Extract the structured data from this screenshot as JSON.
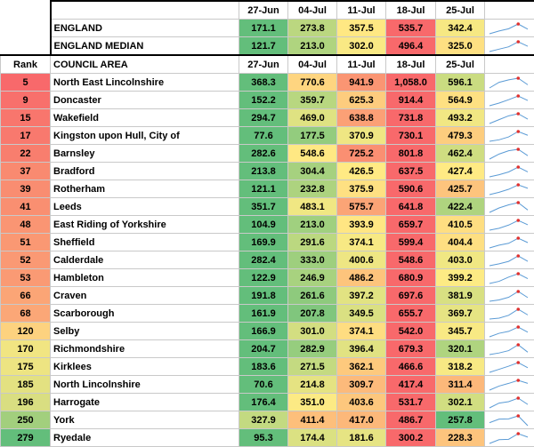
{
  "columns": {
    "rank": "Rank",
    "council_area": "COUNCIL AREA",
    "weeks": [
      "27-Jun",
      "04-Jul",
      "11-Jul",
      "18-Jul",
      "25-Jul"
    ]
  },
  "summary": [
    {
      "name": "ENGLAND",
      "values": [
        "171.1",
        "273.8",
        "357.5",
        "535.7",
        "342.4"
      ],
      "nums": [
        171.1,
        273.8,
        357.5,
        535.7,
        342.4
      ]
    },
    {
      "name": "ENGLAND MEDIAN",
      "values": [
        "121.7",
        "213.0",
        "302.0",
        "496.4",
        "325.0"
      ],
      "nums": [
        121.7,
        213.0,
        302.0,
        496.4,
        325.0
      ]
    }
  ],
  "rows": [
    {
      "rank": "5",
      "name": "North East Lincolnshire",
      "values": [
        "368.3",
        "770.6",
        "941.9",
        "1,058.0",
        "596.1"
      ],
      "nums": [
        368.3,
        770.6,
        941.9,
        1058.0,
        596.1
      ],
      "rank_color": "#f8696b"
    },
    {
      "rank": "9",
      "name": "Doncaster",
      "values": [
        "152.2",
        "359.7",
        "625.3",
        "914.4",
        "564.9"
      ],
      "nums": [
        152.2,
        359.7,
        625.3,
        914.4,
        564.9
      ],
      "rank_color": "#f8706c"
    },
    {
      "rank": "15",
      "name": "Wakefield",
      "values": [
        "294.7",
        "469.0",
        "638.8",
        "731.8",
        "493.2"
      ],
      "nums": [
        294.7,
        469.0,
        638.8,
        731.8,
        493.2
      ],
      "rank_color": "#f8766d"
    },
    {
      "rank": "17",
      "name": "Kingston upon Hull, City of",
      "values": [
        "77.6",
        "177.5",
        "370.9",
        "730.1",
        "479.3"
      ],
      "nums": [
        77.6,
        177.5,
        370.9,
        730.1,
        479.3
      ],
      "rank_color": "#f8796e"
    },
    {
      "rank": "22",
      "name": "Barnsley",
      "values": [
        "282.6",
        "548.6",
        "725.2",
        "801.8",
        "462.4"
      ],
      "nums": [
        282.6,
        548.6,
        725.2,
        801.8,
        462.4
      ],
      "rank_color": "#f87e6e"
    },
    {
      "rank": "37",
      "name": "Bradford",
      "values": [
        "213.8",
        "304.4",
        "426.5",
        "637.5",
        "427.4"
      ],
      "nums": [
        213.8,
        304.4,
        426.5,
        637.5,
        427.4
      ],
      "rank_color": "#f98a70"
    },
    {
      "rank": "39",
      "name": "Rotherham",
      "values": [
        "121.1",
        "232.8",
        "375.9",
        "590.6",
        "425.7"
      ],
      "nums": [
        121.1,
        232.8,
        375.9,
        590.6,
        425.7
      ],
      "rank_color": "#f98d71"
    },
    {
      "rank": "41",
      "name": "Leeds",
      "values": [
        "351.7",
        "483.1",
        "575.7",
        "641.8",
        "422.4"
      ],
      "nums": [
        351.7,
        483.1,
        575.7,
        641.8,
        422.4
      ],
      "rank_color": "#f98f71"
    },
    {
      "rank": "48",
      "name": "East Riding of Yorkshire",
      "values": [
        "104.9",
        "213.0",
        "393.9",
        "659.7",
        "410.5"
      ],
      "nums": [
        104.9,
        213.0,
        393.9,
        659.7,
        410.5
      ],
      "rank_color": "#fa9573"
    },
    {
      "rank": "51",
      "name": "Sheffield",
      "values": [
        "169.9",
        "291.6",
        "374.1",
        "599.4",
        "404.4"
      ],
      "nums": [
        169.9,
        291.6,
        374.1,
        599.4,
        404.4
      ],
      "rank_color": "#fa9873"
    },
    {
      "rank": "52",
      "name": "Calderdale",
      "values": [
        "282.4",
        "333.0",
        "400.6",
        "548.6",
        "403.0"
      ],
      "nums": [
        282.4,
        333.0,
        400.6,
        548.6,
        403.0
      ],
      "rank_color": "#fa9974"
    },
    {
      "rank": "53",
      "name": "Hambleton",
      "values": [
        "122.9",
        "246.9",
        "486.2",
        "680.9",
        "399.2"
      ],
      "nums": [
        122.9,
        246.9,
        486.2,
        680.9,
        399.2
      ],
      "rank_color": "#fa9a74"
    },
    {
      "rank": "66",
      "name": "Craven",
      "values": [
        "191.8",
        "261.6",
        "397.2",
        "697.6",
        "381.9"
      ],
      "nums": [
        191.8,
        261.6,
        397.2,
        697.6,
        381.9
      ],
      "rank_color": "#fba576"
    },
    {
      "rank": "68",
      "name": "Scarborough",
      "values": [
        "161.9",
        "207.8",
        "349.5",
        "655.7",
        "369.7"
      ],
      "nums": [
        161.9,
        207.8,
        349.5,
        655.7,
        369.7
      ],
      "rank_color": "#fba777"
    },
    {
      "rank": "120",
      "name": "Selby",
      "values": [
        "166.9",
        "301.0",
        "374.1",
        "542.0",
        "345.7"
      ],
      "nums": [
        166.9,
        301.0,
        374.1,
        542.0,
        345.7
      ],
      "rank_color": "#fdd27f"
    },
    {
      "rank": "170",
      "name": "Richmondshire",
      "values": [
        "204.7",
        "282.9",
        "396.4",
        "679.3",
        "320.1"
      ],
      "nums": [
        204.7,
        282.9,
        396.4,
        679.3,
        320.1
      ],
      "rank_color": "#f1e582"
    },
    {
      "rank": "175",
      "name": "Kirklees",
      "values": [
        "183.6",
        "271.5",
        "362.1",
        "466.6",
        "318.2"
      ],
      "nums": [
        183.6,
        271.5,
        362.1,
        466.6,
        318.2
      ],
      "rank_color": "#ede482"
    },
    {
      "rank": "185",
      "name": "North Lincolnshire",
      "values": [
        "70.6",
        "214.8",
        "309.7",
        "417.4",
        "311.4"
      ],
      "nums": [
        70.6,
        214.8,
        309.7,
        417.4,
        311.4
      ],
      "rank_color": "#e3e181"
    },
    {
      "rank": "196",
      "name": "Harrogate",
      "values": [
        "176.4",
        "351.0",
        "403.6",
        "531.7",
        "302.1"
      ],
      "nums": [
        176.4,
        351.0,
        403.6,
        531.7,
        302.1
      ],
      "rank_color": "#d9de81"
    },
    {
      "rank": "250",
      "name": "York",
      "values": [
        "327.9",
        "411.4",
        "417.0",
        "486.7",
        "257.8"
      ],
      "nums": [
        327.9,
        411.4,
        417.0,
        486.7,
        257.8
      ],
      "rank_color": "#a2cf7d"
    },
    {
      "rank": "279",
      "name": "Ryedale",
      "values": [
        "95.3",
        "174.4",
        "181.6",
        "300.2",
        "228.3"
      ],
      "nums": [
        95.3,
        174.4,
        181.6,
        300.2,
        228.3
      ],
      "rank_color": "#63be7b"
    }
  ],
  "colors": {
    "scale_low": "#63be7b",
    "scale_mid": "#ffeb84",
    "scale_high": "#f8696b",
    "spark_line": "#5b9bd5",
    "spark_max": "#e0312f"
  }
}
